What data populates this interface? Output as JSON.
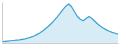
{
  "chart_data": {
    "type": "area",
    "x": [
      0,
      1,
      2,
      3,
      4,
      5,
      6,
      7,
      8,
      9,
      10,
      11,
      12,
      13,
      14,
      15,
      16,
      17,
      18,
      19,
      20,
      21,
      22,
      23,
      24,
      25,
      26,
      27,
      28,
      29,
      30,
      31,
      32,
      33,
      34,
      35,
      36,
      37,
      38,
      39,
      40
    ],
    "values": [
      0.5,
      0.6,
      0.7,
      0.8,
      0.9,
      1.0,
      1.1,
      1.3,
      1.5,
      1.8,
      2.1,
      2.5,
      3.0,
      3.6,
      4.3,
      5.1,
      6.0,
      7.0,
      8.1,
      9.3,
      10.6,
      12.0,
      13.2,
      14.0,
      13.0,
      11.2,
      9.5,
      8.5,
      8.0,
      8.8,
      9.5,
      8.8,
      7.8,
      6.8,
      6.0,
      5.3,
      4.7,
      4.2,
      3.8,
      3.5,
      3.2
    ],
    "color": "#3a9fd4",
    "xlim": [
      0,
      40
    ],
    "ylim": [
      0,
      14.7
    ],
    "tick_labels": false
  }
}
